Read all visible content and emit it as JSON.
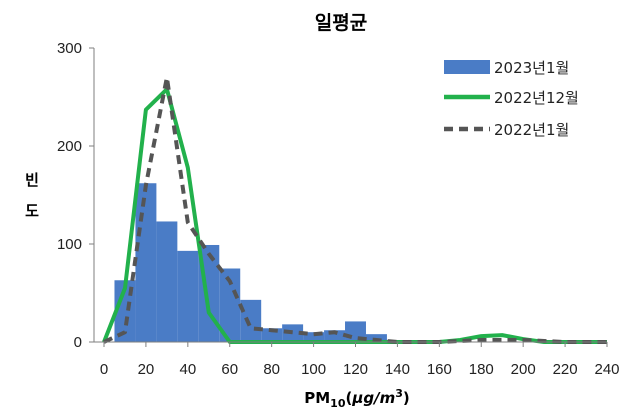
{
  "chart_data": {
    "type": "bar",
    "title": "일평균",
    "xlabel": "PM10(μg/m3)",
    "xlabel_main": "PM",
    "xlabel_sub": "10",
    "xlabel_unit_open": "(",
    "xlabel_unit_mu": "μg/m",
    "xlabel_unit_sup": "3",
    "xlabel_unit_close": ")",
    "ylabel": "빈 도",
    "ylabel_chars": [
      "빈",
      "도"
    ],
    "xlim": [
      0,
      240
    ],
    "ylim": [
      0,
      300
    ],
    "xticks": [
      0,
      20,
      40,
      60,
      80,
      100,
      120,
      140,
      160,
      180,
      200,
      220,
      240
    ],
    "yticks": [
      0,
      100,
      200,
      300
    ],
    "grid": false,
    "legend_position": "top-right",
    "histogram": {
      "name": "2023년1월",
      "color": "#4a7cc6",
      "bins": [
        {
          "start": 5,
          "end": 15,
          "value": 63
        },
        {
          "start": 15,
          "end": 25,
          "value": 162
        },
        {
          "start": 25,
          "end": 35,
          "value": 123
        },
        {
          "start": 35,
          "end": 45,
          "value": 93
        },
        {
          "start": 45,
          "end": 55,
          "value": 99
        },
        {
          "start": 55,
          "end": 65,
          "value": 75
        },
        {
          "start": 65,
          "end": 75,
          "value": 43
        },
        {
          "start": 75,
          "end": 85,
          "value": 14
        },
        {
          "start": 85,
          "end": 95,
          "value": 18
        },
        {
          "start": 95,
          "end": 105,
          "value": 10
        },
        {
          "start": 105,
          "end": 115,
          "value": 12
        },
        {
          "start": 115,
          "end": 125,
          "value": 21
        },
        {
          "start": 125,
          "end": 135,
          "value": 8
        }
      ]
    },
    "series": [
      {
        "name": "2022년12월",
        "color": "#22b14c",
        "style": "solid",
        "points": [
          [
            0,
            0
          ],
          [
            10,
            55
          ],
          [
            20,
            237
          ],
          [
            30,
            258
          ],
          [
            40,
            178
          ],
          [
            50,
            30
          ],
          [
            60,
            0
          ],
          [
            70,
            0
          ],
          [
            80,
            0
          ],
          [
            100,
            0
          ],
          [
            120,
            0
          ],
          [
            140,
            0
          ],
          [
            160,
            0
          ],
          [
            170,
            2
          ],
          [
            180,
            6
          ],
          [
            190,
            7
          ],
          [
            200,
            3
          ],
          [
            210,
            0
          ],
          [
            220,
            0
          ],
          [
            230,
            0
          ],
          [
            240,
            0
          ]
        ]
      },
      {
        "name": "2022년1월",
        "color": "#555555",
        "style": "dashed",
        "points": [
          [
            0,
            0
          ],
          [
            10,
            10
          ],
          [
            20,
            160
          ],
          [
            30,
            270
          ],
          [
            40,
            122
          ],
          [
            50,
            90
          ],
          [
            60,
            62
          ],
          [
            70,
            14
          ],
          [
            80,
            12
          ],
          [
            90,
            10
          ],
          [
            100,
            8
          ],
          [
            110,
            10
          ],
          [
            120,
            4
          ],
          [
            130,
            2
          ],
          [
            140,
            0
          ],
          [
            150,
            0
          ],
          [
            160,
            0
          ],
          [
            180,
            2
          ],
          [
            200,
            2
          ],
          [
            220,
            0
          ],
          [
            240,
            0
          ]
        ]
      }
    ]
  }
}
